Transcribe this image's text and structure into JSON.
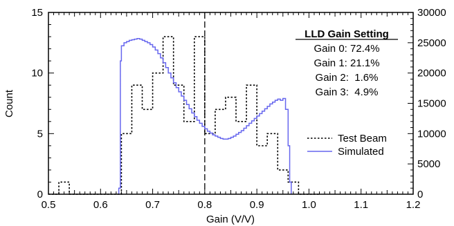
{
  "chart_data": {
    "type": "line",
    "xlabel": "Gain (V/V)",
    "ylabel": "Count",
    "xlim": [
      0.5,
      1.2
    ],
    "ylim": [
      0,
      15
    ],
    "y2lim": [
      0,
      30000
    ],
    "x_ticks": [
      "0.5",
      "0.6",
      "0.7",
      "0.8",
      "0.9",
      "1.0",
      "1.1",
      "1.2"
    ],
    "y_ticks": [
      "0",
      "5",
      "10",
      "15"
    ],
    "y2_ticks": [
      "0",
      "5000",
      "10000",
      "15000",
      "20000",
      "25000",
      "30000"
    ],
    "grid": false,
    "legend": {
      "placement": "bottom-right",
      "items": [
        "Test Beam",
        "Simulated"
      ]
    },
    "reference_line": {
      "x": 0.8
    },
    "annotation": {
      "title": "LLD Gain Setting",
      "lines": [
        "Gain 0: 72.4%",
        "Gain 1: 21.1%",
        "Gain 2:  1.6%",
        "Gain 3:  4.9%"
      ]
    },
    "series": [
      {
        "name": "Test Beam",
        "axis": "left",
        "style": "dotted-step",
        "color": "#000000",
        "bin_width": 0.02,
        "x": [
          0.5,
          0.52,
          0.54,
          0.56,
          0.58,
          0.6,
          0.62,
          0.64,
          0.66,
          0.68,
          0.7,
          0.72,
          0.74,
          0.76,
          0.78,
          0.8,
          0.82,
          0.84,
          0.86,
          0.88,
          0.9,
          0.92,
          0.94,
          0.96,
          0.98,
          1.0
        ],
        "values": [
          0,
          1,
          0,
          0,
          0,
          0,
          0,
          5,
          9,
          7,
          10,
          13,
          9,
          6,
          13,
          5,
          7,
          8,
          6,
          9,
          4,
          5,
          2,
          1,
          0,
          0
        ]
      },
      {
        "name": "Simulated",
        "axis": "right",
        "style": "solid-step",
        "color": "#6666ee",
        "x": [
          0.635,
          0.638,
          0.64,
          0.645,
          0.65,
          0.655,
          0.66,
          0.665,
          0.67,
          0.675,
          0.68,
          0.685,
          0.69,
          0.695,
          0.7,
          0.705,
          0.71,
          0.715,
          0.72,
          0.725,
          0.73,
          0.735,
          0.74,
          0.745,
          0.75,
          0.755,
          0.76,
          0.765,
          0.77,
          0.775,
          0.78,
          0.785,
          0.79,
          0.795,
          0.8,
          0.805,
          0.81,
          0.815,
          0.82,
          0.825,
          0.83,
          0.835,
          0.84,
          0.845,
          0.85,
          0.855,
          0.86,
          0.865,
          0.87,
          0.875,
          0.88,
          0.885,
          0.89,
          0.895,
          0.9,
          0.905,
          0.91,
          0.915,
          0.92,
          0.925,
          0.93,
          0.935,
          0.94,
          0.945,
          0.95,
          0.955,
          0.96,
          0.963,
          0.966
        ],
        "values": [
          1000,
          22000,
          24500,
          25000,
          25200,
          25400,
          25500,
          25600,
          25700,
          25600,
          25400,
          25200,
          25000,
          24700,
          24300,
          23800,
          23200,
          22500,
          21700,
          20900,
          20000,
          19200,
          18400,
          17600,
          16900,
          16200,
          15500,
          14800,
          14100,
          13400,
          12800,
          12200,
          11700,
          11200,
          10800,
          10400,
          10100,
          9800,
          9600,
          9400,
          9200,
          9100,
          9100,
          9200,
          9400,
          9600,
          9900,
          10200,
          10500,
          10900,
          11300,
          11700,
          12100,
          12500,
          12900,
          13300,
          13700,
          14100,
          14500,
          14900,
          15200,
          15500,
          15700,
          15500,
          15800,
          14000,
          8000,
          2000,
          0
        ]
      }
    ]
  }
}
